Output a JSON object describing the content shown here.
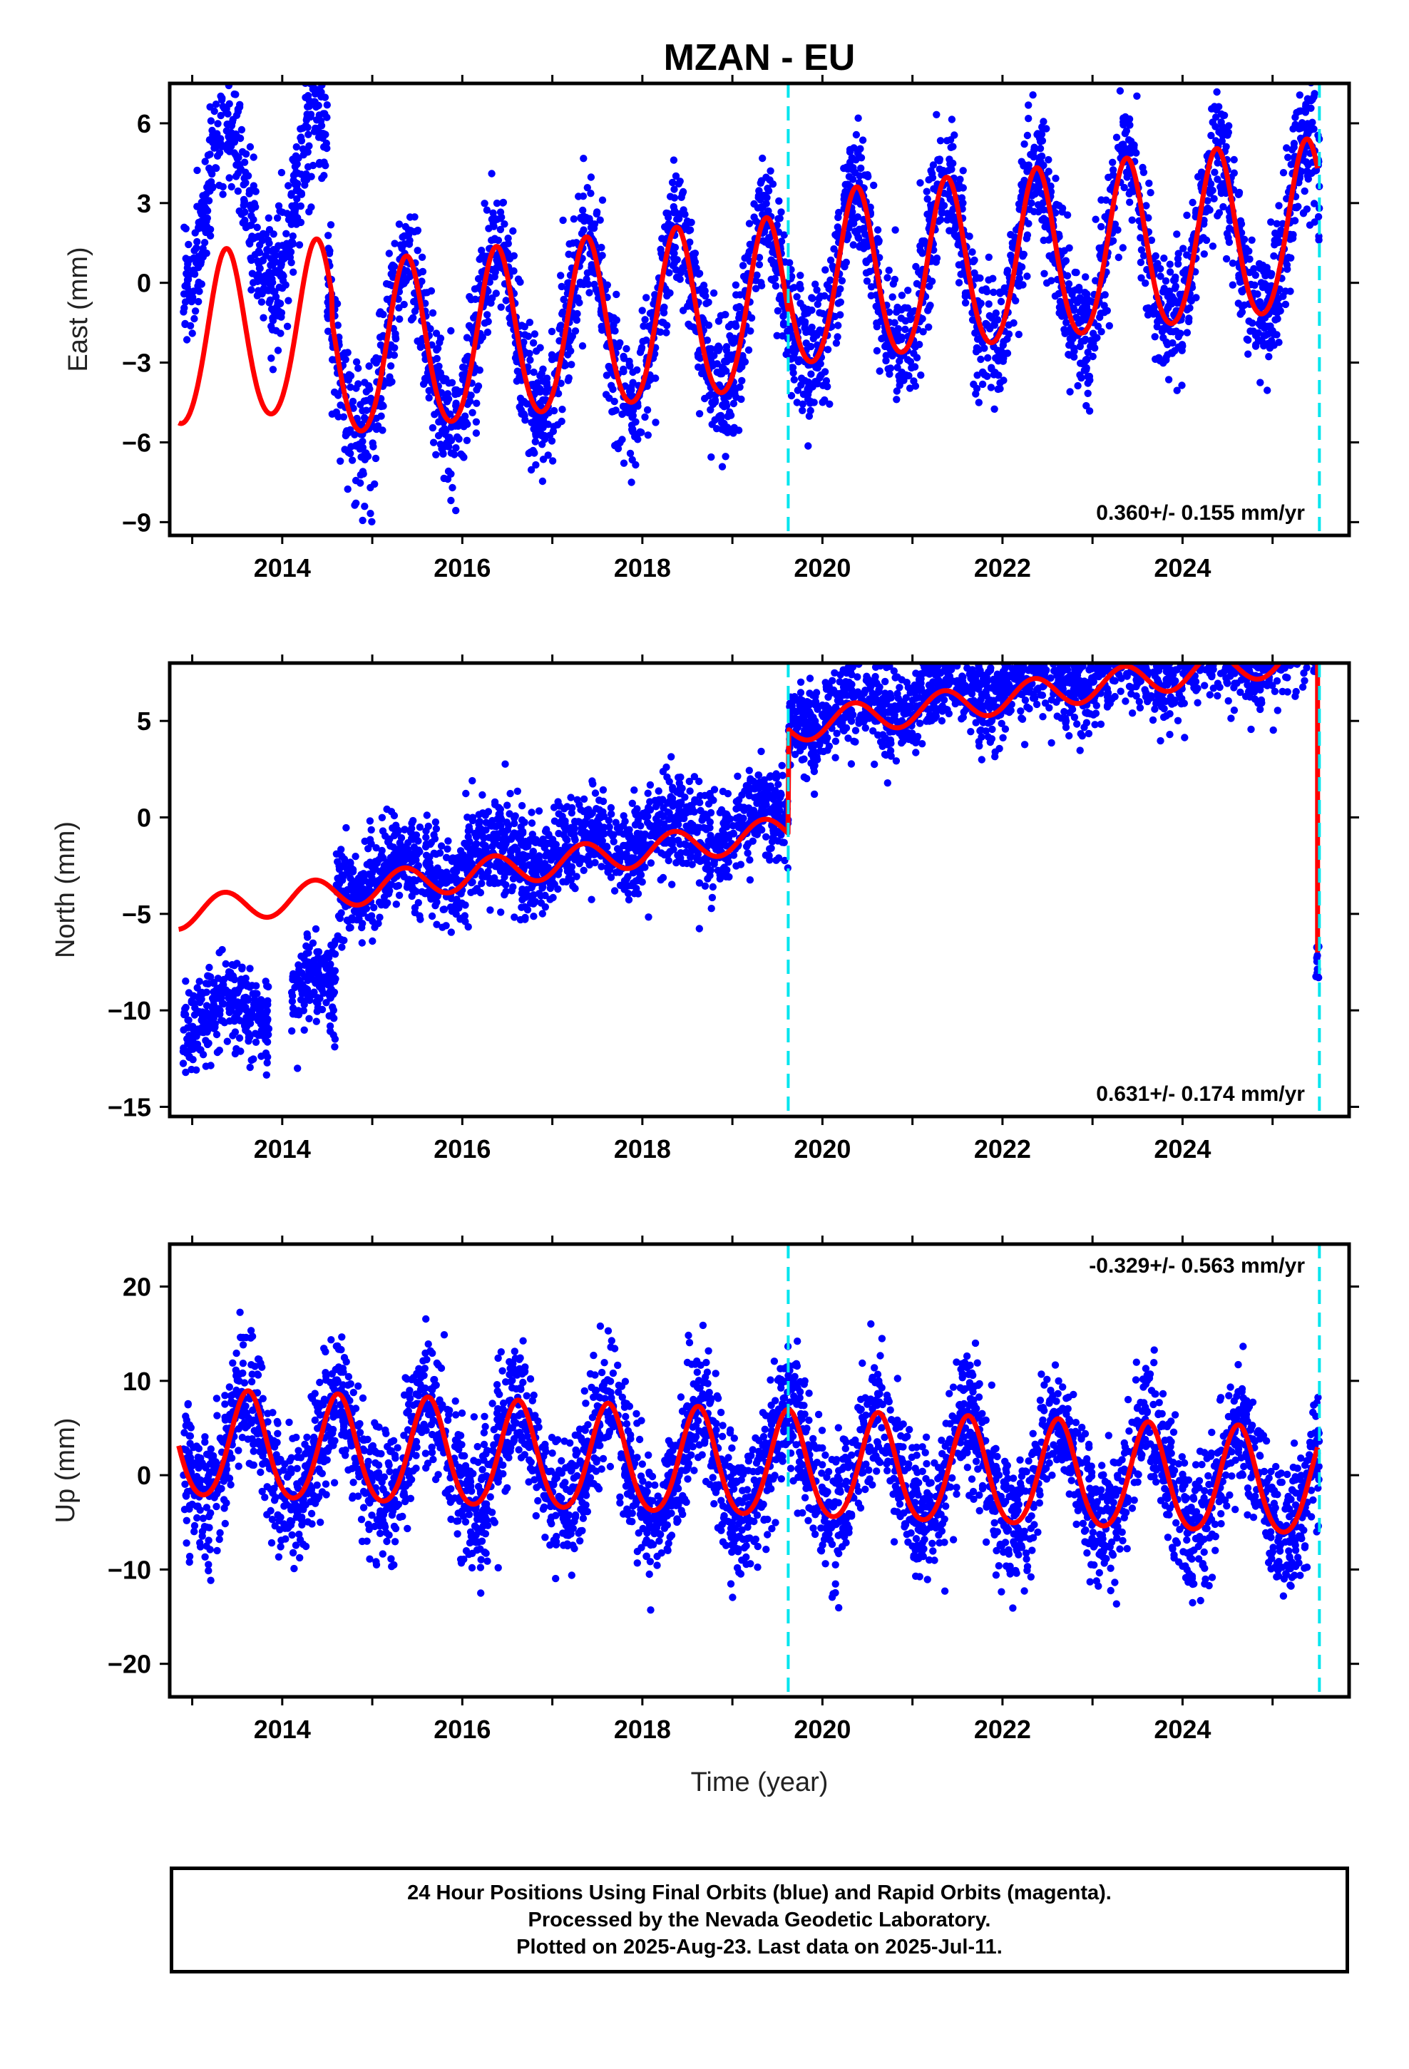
{
  "chart_data": {
    "title": "MZAN - EU",
    "xlabel": "Time (year)",
    "x_tick_labels": [
      "2014",
      "2016",
      "2018",
      "2020",
      "2022",
      "2024"
    ],
    "xlim": [
      2012.75,
      2025.85
    ],
    "event_lines": [
      2019.62,
      2025.52
    ],
    "colors": {
      "points": "#0000ff",
      "model": "#ff0000",
      "event_line": "#00e5ee",
      "frame": "#000000"
    },
    "panels": [
      {
        "type": "scatter",
        "name": "east",
        "ylabel": "East (mm)",
        "ylim": [
          -9.5,
          7.5
        ],
        "y_tick_labels": [
          "6",
          "3",
          "0",
          "-3",
          "-6",
          "-9"
        ],
        "rate_label": "0.360+/- 0.155 mm/yr",
        "rate_position": "bottom-right",
        "model": {
          "velocity": 0.36,
          "annual_amplitude": 3.2,
          "annual_peak": 0.38,
          "semiannual_amplitude": 0.3,
          "start": 2012.85,
          "end": 2025.5,
          "offsets": [
            {
              "epoch": 2012.85,
              "value": -2.4
            },
            {
              "epoch": 2014.55,
              "value": -3.4
            },
            {
              "epoch": 2019.62,
              "value": -2.6
            }
          ]
        },
        "points": {
          "count": 3900,
          "noise": 1.25,
          "segment_offsets": [
            {
              "start": 2012.9,
              "end": 2014.5,
              "extra": 5.0
            },
            {
              "start": 2014.5,
              "end": 2025.52,
              "extra": 0.0
            }
          ]
        }
      },
      {
        "type": "scatter",
        "name": "north",
        "ylabel": "North (mm)",
        "ylim": [
          -15.5,
          8.0
        ],
        "y_tick_labels": [
          "5",
          "0",
          "-5",
          "-10",
          "-15"
        ],
        "rate_label": "0.631+/- 0.174 mm/yr",
        "rate_position": "bottom-right",
        "model": {
          "velocity": 0.631,
          "annual_amplitude": 0.8,
          "annual_peak": 0.35,
          "semiannual_amplitude": 0.0,
          "start": 2012.85,
          "end": 2025.5,
          "offsets": [
            {
              "epoch": 2012.85,
              "value": -5.0
            },
            {
              "epoch": 2019.62,
              "value": 0.4
            }
          ],
          "end_drop": -7.0
        },
        "points": {
          "count": 3900,
          "noise": 1.2,
          "segment_offsets": [
            {
              "start": 2012.9,
              "end": 2013.85,
              "extra": -5.5
            },
            {
              "start": 2014.1,
              "end": 2014.6,
              "extra": -5.2
            },
            {
              "start": 2014.6,
              "end": 2025.48,
              "extra": 0.6
            }
          ],
          "tail": {
            "start": 2025.48,
            "end": 2025.52,
            "value": -7.2
          }
        }
      },
      {
        "type": "scatter",
        "name": "up",
        "ylabel": "Up (mm)",
        "ylim": [
          -23.5,
          24.5
        ],
        "y_tick_labels": [
          "20",
          "10",
          "0",
          "-10",
          "-20"
        ],
        "rate_label": "-0.329+/- 0.563 mm/yr",
        "rate_position": "top-right",
        "model": {
          "velocity": -0.329,
          "annual_amplitude": 5.6,
          "annual_peak": 0.62,
          "semiannual_amplitude": 0.6,
          "start": 2012.85,
          "end": 2025.5,
          "offsets": [
            {
              "epoch": 2012.85,
              "value": 3.0
            }
          ]
        },
        "points": {
          "count": 3900,
          "noise": 3.6,
          "segment_offsets": [
            {
              "start": 2012.9,
              "end": 2025.52,
              "extra": 0.0
            }
          ]
        }
      }
    ]
  },
  "footer": {
    "line1": "24 Hour Positions Using Final Orbits (blue) and Rapid Orbits (magenta).",
    "line2": "Processed by the Nevada Geodetic Laboratory.",
    "line3": "Plotted on 2025-Aug-23. Last data on 2025-Jul-11."
  }
}
